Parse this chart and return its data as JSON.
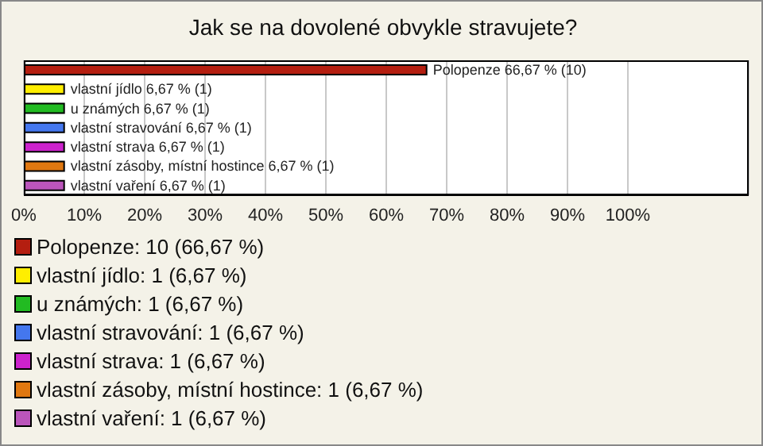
{
  "chart_data": {
    "type": "bar",
    "orientation": "horizontal",
    "title": "Jak se na dovolené obvykle stravujete?",
    "categories": [
      null,
      null,
      null,
      null,
      null,
      null,
      null
    ],
    "values": [
      66.67,
      6.67,
      6.67,
      6.67,
      6.67,
      6.67,
      6.67
    ],
    "colors": [
      "#b41e10",
      "#ffee00",
      "#22bb22",
      "#4477ee",
      "#cc22cc",
      "#e07810",
      "#bb55bb"
    ],
    "value_labels": [
      "Polopenze 66,67 % (10)",
      "vlastní jídlo 6,67 % (1)",
      "u známých 6,67 % (1)",
      "vlastní stravování 6,67 % (1)",
      "vlastní strava 6,67 % (1)",
      "vlastní zásoby, místní hostince 6,67 % (1)",
      "vlastní vaření 6,67 % (1)"
    ],
    "xlim": [
      0,
      120
    ],
    "xticks": [
      {
        "value": 0,
        "label": "0%"
      },
      {
        "value": 10,
        "label": "10%"
      },
      {
        "value": 20,
        "label": "20%"
      },
      {
        "value": 30,
        "label": "30%"
      },
      {
        "value": 40,
        "label": "40%"
      },
      {
        "value": 50,
        "label": "50%"
      },
      {
        "value": 60,
        "label": "60%"
      },
      {
        "value": 70,
        "label": "70%"
      },
      {
        "value": 80,
        "label": "80%"
      },
      {
        "value": 90,
        "label": "90%"
      },
      {
        "value": 100,
        "label": "100%"
      }
    ],
    "grid": "x",
    "tick_labels": "x",
    "annotations": [
      "Polopenze: 10 (66,67 %)",
      "vlastní jídlo: 1 (6,67 %)",
      "u známých: 1 (6,67 %)",
      "vlastní stravování: 1 (6,67 %)",
      "vlastní strava: 1 (6,67 %)",
      "vlastní zásoby, místní hostince: 1 (6,67 %)",
      "vlastní vaření: 1 (6,67 %)"
    ]
  }
}
